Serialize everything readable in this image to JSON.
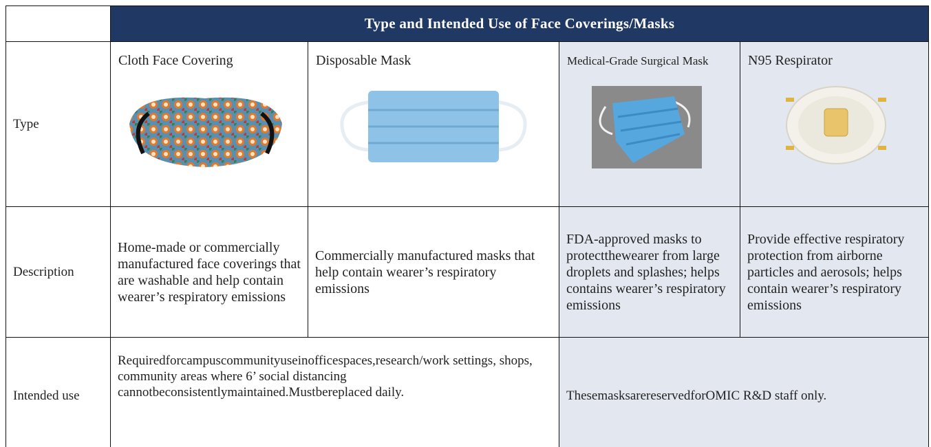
{
  "header": {
    "title": "Type and Intended Use of Face Coverings/Masks"
  },
  "table": {
    "row_labels": [
      "Type",
      "Description",
      "Intended use"
    ],
    "types": [
      "Cloth Face Covering",
      "Disposable Mask",
      "Medical-Grade Surgical Mask",
      "N95 Respirator"
    ],
    "descriptions": [
      "Home-made or commercially manufactured face coverings that are washable and help contain wearer’s respiratory emissions",
      "Commercially manufactured masks that help contain wearer’s respiratory emissions",
      "FDA-approved masks to protectthewearer from large droplets and splashes; helps contains wearer’s respiratory emissions",
      "Provide effective respiratory protection from airborne particles and aerosols; helps contain wearer’s respiratory emissions"
    ],
    "intended_use": [
      "Requiredforcampuscommunityuseinofficespaces,research/work settings, shops, community areas where 6’ social distancing cannotbeconsistentlymaintained.Mustbereplaced daily.",
      "ThesemasksarereservedforOMIC R&D staff only."
    ]
  }
}
